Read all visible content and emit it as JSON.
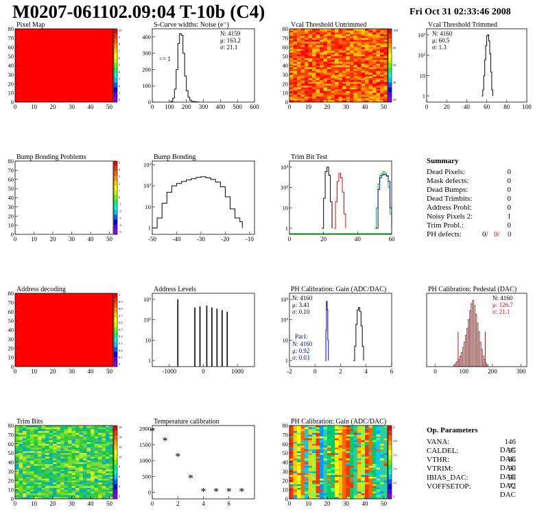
{
  "header": {
    "title": "M0207-061102.09:04 T-10b (C4)",
    "date": "Fri Oct 31 02:33:46 2008"
  },
  "colors": {
    "red": "#ff0000",
    "blue": "#0000cc",
    "green": "#00cc00",
    "black": "#000000"
  },
  "chart_data": [
    {
      "id": "pixel-map",
      "type": "heatmap",
      "title": "Pixel Map",
      "xlim": [
        0,
        52
      ],
      "ylim": [
        0,
        80
      ],
      "xticks": [
        0,
        10,
        20,
        30,
        40,
        50
      ],
      "yticks": [
        0,
        10,
        20,
        30,
        40,
        50,
        60,
        70,
        80
      ],
      "fill": "uniform-red",
      "zticks": [
        "10",
        "9",
        "8",
        "7",
        "6",
        "5",
        "4",
        "3",
        "2",
        "1",
        "0"
      ]
    },
    {
      "id": "scurve-widths",
      "type": "line",
      "title": "S-Curve widths: Noise (e⁻)",
      "xlim": [
        0,
        600
      ],
      "ylim": [
        0,
        450
      ],
      "xticks": [
        0,
        100,
        200,
        300,
        400,
        500,
        600
      ],
      "yticks": [
        0,
        100,
        200,
        300,
        400
      ],
      "stats": [
        "N: 4159",
        "μ: 163.2",
        "σ: 21.1"
      ],
      "annotation": "<= 1",
      "series": [
        {
          "x": [
            100,
            110,
            120,
            130,
            140,
            150,
            160,
            170,
            180,
            190,
            200,
            210,
            220,
            230,
            240,
            250,
            260,
            270,
            280
          ],
          "y": [
            0,
            5,
            25,
            80,
            200,
            360,
            420,
            410,
            300,
            160,
            70,
            30,
            12,
            5,
            3,
            2,
            1,
            0,
            0
          ]
        }
      ]
    },
    {
      "id": "vcal-untrimmed",
      "type": "heatmap",
      "title": "Vcal Threshold Untrimmed",
      "xlim": [
        0,
        52
      ],
      "ylim": [
        0,
        80
      ],
      "xticks": [
        0,
        10,
        20,
        30,
        40,
        50
      ],
      "yticks": [
        0,
        10,
        20,
        30,
        40,
        50,
        60,
        70,
        80
      ],
      "fill": "noise-orange",
      "zticks": [
        "100",
        "80",
        "60",
        "40",
        "20"
      ]
    },
    {
      "id": "vcal-trimmed",
      "type": "line",
      "title": "Vcal Threshold Trimmed",
      "xlim": [
        0,
        100
      ],
      "ylog": true,
      "ylim": [
        0.5,
        2000
      ],
      "xticks": [
        0,
        20,
        40,
        60,
        80,
        100
      ],
      "yticks": [
        1,
        10,
        100,
        1000
      ],
      "ytick_labels": [
        "1",
        "10",
        "10²",
        "10³"
      ],
      "stats": [
        "N: 4160",
        "μ: 60.5",
        "σ: 1.3"
      ],
      "series": [
        {
          "x": [
            55,
            56,
            57,
            58,
            59,
            60,
            61,
            62,
            63,
            64,
            65,
            66
          ],
          "y": [
            1,
            2,
            10,
            60,
            300,
            900,
            1000,
            500,
            120,
            15,
            2,
            1
          ]
        }
      ]
    },
    {
      "id": "bump-problems",
      "type": "heatmap",
      "title": "Bump Bonding Problems",
      "xlim": [
        0,
        52
      ],
      "ylim": [
        0,
        80
      ],
      "xticks": [
        0,
        10,
        20,
        30,
        40,
        50
      ],
      "yticks": [
        0,
        10,
        20,
        30,
        40,
        50,
        60,
        70,
        80
      ],
      "fill": "empty",
      "zticks": [
        "5",
        "4",
        "3",
        "2",
        "1",
        "0",
        "-1",
        "-2",
        "-3",
        "-4",
        "-5"
      ]
    },
    {
      "id": "bump-bonding",
      "type": "line",
      "title": "Bump Bonding",
      "xlim": [
        -50,
        -8
      ],
      "ylog": true,
      "ylim": [
        0.5,
        1500
      ],
      "xticks": [
        -50,
        -40,
        -30,
        -20,
        -10
      ],
      "yticks": [
        1,
        10,
        100,
        1000
      ],
      "ytick_labels": [
        "1",
        "10",
        "10²",
        "10³"
      ],
      "series": [
        {
          "x": [
            -50,
            -48,
            -46,
            -44,
            -42,
            -40,
            -38,
            -36,
            -34,
            -32,
            -30,
            -28,
            -26,
            -24,
            -22,
            -20,
            -18,
            -16,
            -14,
            -13
          ],
          "y": [
            1,
            3,
            15,
            50,
            100,
            130,
            160,
            190,
            220,
            250,
            270,
            240,
            200,
            150,
            90,
            30,
            8,
            3,
            2,
            1
          ]
        }
      ]
    },
    {
      "id": "trim-bit-test",
      "type": "line",
      "title": "Trim Bit Test",
      "xlim": [
        0,
        60
      ],
      "ylog": true,
      "ylim": [
        0.5,
        2000
      ],
      "xticks": [
        0,
        20,
        40,
        60
      ],
      "yticks": [
        1,
        10,
        100,
        1000
      ],
      "ytick_labels": [
        "1",
        "10",
        "10²",
        "10³"
      ],
      "series": [
        {
          "color": "black",
          "x": [
            19,
            20,
            21,
            22,
            23,
            24,
            25
          ],
          "y": [
            1,
            30,
            600,
            1000,
            400,
            20,
            1
          ]
        },
        {
          "color": "red",
          "x": [
            26,
            27,
            28,
            29,
            30,
            31,
            32,
            33
          ],
          "y": [
            1,
            20,
            200,
            500,
            300,
            60,
            5,
            1
          ]
        },
        {
          "color": "green",
          "x": [
            50,
            51,
            52,
            53,
            54,
            55,
            56,
            57,
            58,
            59,
            60
          ],
          "y": [
            1,
            10,
            150,
            400,
            500,
            600,
            500,
            350,
            100,
            5,
            1
          ]
        },
        {
          "color": "blue",
          "x": [
            51,
            52,
            53,
            54,
            55,
            56,
            57,
            58,
            59,
            60
          ],
          "y": [
            1,
            80,
            300,
            400,
            450,
            420,
            380,
            200,
            10,
            1
          ]
        }
      ]
    },
    {
      "id": "address-decoding",
      "type": "heatmap",
      "title": "Address decoding",
      "xlim": [
        0,
        52
      ],
      "ylim": [
        0,
        80
      ],
      "xticks": [
        0,
        10,
        20,
        30,
        40,
        50
      ],
      "yticks": [
        0,
        10,
        20,
        30,
        40,
        50,
        60,
        70,
        80
      ],
      "fill": "uniform-red",
      "zticks": [
        "1",
        "0.9",
        "0.8",
        "0.7",
        "0.6",
        "0.5",
        "0.4",
        "0.3",
        "0.2",
        "0.1",
        "0"
      ]
    },
    {
      "id": "address-levels",
      "type": "bar",
      "title": "Address Levels",
      "xlim": [
        -1500,
        1500
      ],
      "ylog": true,
      "ylim": [
        0.5,
        2000
      ],
      "xticks": [
        -1000,
        0,
        1000
      ],
      "yticks": [
        1,
        10,
        100,
        1000
      ],
      "ytick_labels": [
        "1",
        "10",
        "10²",
        "10³"
      ],
      "peaks": [
        {
          "x": -750,
          "y": 1000
        },
        {
          "x": -250,
          "y": 400
        },
        {
          "x": -100,
          "y": 450
        },
        {
          "x": 100,
          "y": 500
        },
        {
          "x": 250,
          "y": 400
        },
        {
          "x": 400,
          "y": 350
        },
        {
          "x": 550,
          "y": 300
        },
        {
          "x": 700,
          "y": 250
        }
      ]
    },
    {
      "id": "ph-gain",
      "type": "line",
      "title": "PH Calibration: Gain (ADC/DAC)",
      "xlim": [
        -2,
        6
      ],
      "ylog": true,
      "ylim": [
        0.5,
        2000
      ],
      "xticks": [
        -2,
        0,
        2,
        4,
        6
      ],
      "yticks": [
        1,
        10,
        100,
        1000
      ],
      "ytick_labels": [
        "1",
        "10",
        "10²",
        "10³"
      ],
      "stats": [
        "N: 4160",
        "μ: 3.41",
        "σ: 0.10"
      ],
      "stats2_title": "Par1:",
      "stats2": [
        "N: 4160",
        "μ: 0.92",
        "σ: 0.03"
      ],
      "series": [
        {
          "color": "black",
          "x": [
            3.0,
            3.1,
            3.2,
            3.3,
            3.4,
            3.5,
            3.6,
            3.7,
            3.8
          ],
          "y": [
            1,
            5,
            60,
            300,
            400,
            250,
            50,
            5,
            1
          ]
        },
        {
          "color": "blue",
          "x": [
            0.8,
            0.85,
            0.9,
            0.95,
            1.0,
            1.05
          ],
          "y": [
            1,
            30,
            800,
            300,
            10,
            1
          ]
        }
      ]
    },
    {
      "id": "ph-pedestal",
      "type": "bar",
      "title": "PH Calibration: Pedestal (DAC)",
      "xlim": [
        -30,
        320
      ],
      "ylim": [
        0,
        42
      ],
      "xticks": [
        0,
        100,
        200,
        300
      ],
      "stats": [
        "N: 4160",
        "μ: 126.7",
        "σ: 21.1"
      ],
      "bin_width": 5,
      "bins": [
        {
          "x": 65,
          "y": 1
        },
        {
          "x": 70,
          "y": 2
        },
        {
          "x": 75,
          "y": 3
        },
        {
          "x": 80,
          "y": 4
        },
        {
          "x": 85,
          "y": 6
        },
        {
          "x": 90,
          "y": 8
        },
        {
          "x": 95,
          "y": 11
        },
        {
          "x": 100,
          "y": 14
        },
        {
          "x": 105,
          "y": 18
        },
        {
          "x": 110,
          "y": 22
        },
        {
          "x": 115,
          "y": 27
        },
        {
          "x": 120,
          "y": 32
        },
        {
          "x": 125,
          "y": 36
        },
        {
          "x": 130,
          "y": 38
        },
        {
          "x": 135,
          "y": 35
        },
        {
          "x": 140,
          "y": 30
        },
        {
          "x": 145,
          "y": 25
        },
        {
          "x": 150,
          "y": 20
        },
        {
          "x": 155,
          "y": 14
        },
        {
          "x": 160,
          "y": 10
        },
        {
          "x": 165,
          "y": 6
        },
        {
          "x": 170,
          "y": 4
        },
        {
          "x": 175,
          "y": 2
        },
        {
          "x": 180,
          "y": 1
        }
      ],
      "markers": [
        {
          "x": 80,
          "y": 20
        },
        {
          "x": 175,
          "y": 20
        }
      ]
    },
    {
      "id": "trim-bits",
      "type": "heatmap",
      "title": "Trim Bits",
      "xlim": [
        0,
        52
      ],
      "ylim": [
        0,
        80
      ],
      "xticks": [
        0,
        10,
        20,
        30,
        40,
        50
      ],
      "yticks": [
        0,
        10,
        20,
        30,
        40,
        50,
        60,
        70,
        80
      ],
      "fill": "noise-green",
      "zticks": [
        "16",
        "14",
        "12",
        "10",
        "8",
        "6",
        "4",
        "2"
      ]
    },
    {
      "id": "temperature-calibration",
      "type": "scatter",
      "title": "Temperature calibration",
      "xlim": [
        0,
        8
      ],
      "ylim": [
        -200,
        2100
      ],
      "xticks": [
        0,
        2,
        4,
        6
      ],
      "yticks": [
        0,
        500,
        1000,
        1500,
        2000
      ],
      "series": [
        {
          "x": [
            0,
            1,
            2,
            3,
            4,
            5,
            6,
            7
          ],
          "y": [
            1900,
            1600,
            1100,
            420,
            0,
            0,
            0,
            0
          ]
        }
      ]
    },
    {
      "id": "ph-gain-map",
      "type": "heatmap",
      "title": "PH Calibration: Gain (ADC/DAC)",
      "xlim": [
        0,
        52
      ],
      "ylim": [
        0,
        80
      ],
      "xticks": [
        0,
        10,
        20,
        30,
        40,
        50
      ],
      "yticks": [
        0,
        10,
        20,
        30,
        40,
        50,
        60,
        70,
        80
      ],
      "fill": "stripes",
      "zticks": [
        "4",
        "3.8",
        "3.6",
        "3.4",
        "3.2",
        "3"
      ]
    }
  ],
  "summary": {
    "title": "Summary",
    "rows": [
      {
        "label": "Dead Pixels:",
        "value": "0"
      },
      {
        "label": "Mask defects:",
        "value": "0"
      },
      {
        "label": "Dead Bumps:",
        "value": "0"
      },
      {
        "label": "Dead Trimbits:",
        "value": "0"
      },
      {
        "label": "Address Probl:",
        "value": "0"
      },
      {
        "label": "Noisy Pixels 2:",
        "value": "1"
      },
      {
        "label": "Trim Probl.:",
        "value": "0"
      }
    ],
    "ph_defects": {
      "label": "PH defects:",
      "v1": "0/",
      "v2": "0/",
      "v3": "0"
    }
  },
  "op_parameters": {
    "title": "Op. Parameters",
    "rows": [
      {
        "label": "VANA:",
        "value": "146 DAC"
      },
      {
        "label": "CALDEL:",
        "value": "95 DAC"
      },
      {
        "label": "VTHR:",
        "value": "86 DAC"
      },
      {
        "label": "VTRIM:",
        "value": "90 DAC"
      },
      {
        "label": "IBIAS_DAC:",
        "value": "58 DAC"
      },
      {
        "label": "VOFFSETOP:",
        "value": "72 DAC"
      }
    ]
  }
}
